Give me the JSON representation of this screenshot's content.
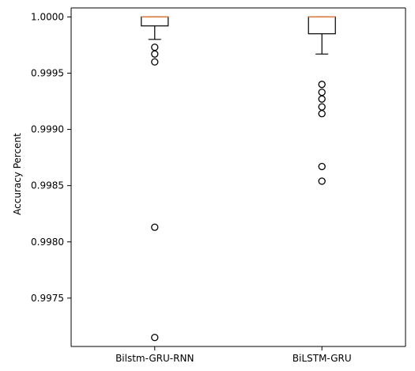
{
  "chart_data": {
    "type": "box",
    "title": "",
    "xlabel": "",
    "ylabel": "Accuracy Percent",
    "ylim": [
      0.99707,
      1.00008
    ],
    "y_ticks": [
      0.9975,
      0.998,
      0.9985,
      0.999,
      0.9995,
      1.0
    ],
    "y_tick_labels": [
      "0.9975",
      "0.9980",
      "0.9985",
      "0.9990",
      "0.9995",
      "1.0000"
    ],
    "grid": false,
    "categories": [
      "Bilstm-GRU-RNN",
      "BiLSTM-GRU"
    ],
    "boxes": [
      {
        "category": "Bilstm-GRU-RNN",
        "whisker_low": 0.9998,
        "q1": 0.99992,
        "median": 1.0,
        "q3": 1.0,
        "whisker_high": 1.0,
        "fliers": [
          0.99973,
          0.99967,
          0.9996,
          0.99813,
          0.99715
        ]
      },
      {
        "category": "BiLSTM-GRU",
        "whisker_low": 0.99967,
        "q1": 0.99985,
        "median": 1.0,
        "q3": 1.0,
        "whisker_high": 1.0,
        "fliers": [
          0.9994,
          0.99933,
          0.99927,
          0.9992,
          0.99914,
          0.99867,
          0.99854
        ]
      }
    ],
    "colors": {
      "box": "#000000",
      "median": "#e07b39",
      "flier": "#000000",
      "axis": "#000000"
    }
  }
}
